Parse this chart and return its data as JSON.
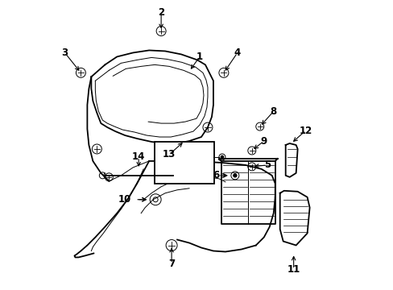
{
  "background_color": "#ffffff",
  "line_color": "#000000",
  "fig_width": 4.89,
  "fig_height": 3.6,
  "dpi": 100,
  "label_fontsize": 8.5,
  "lw_main": 1.3,
  "lw_thin": 0.7,
  "lw_vthick": 1.8
}
